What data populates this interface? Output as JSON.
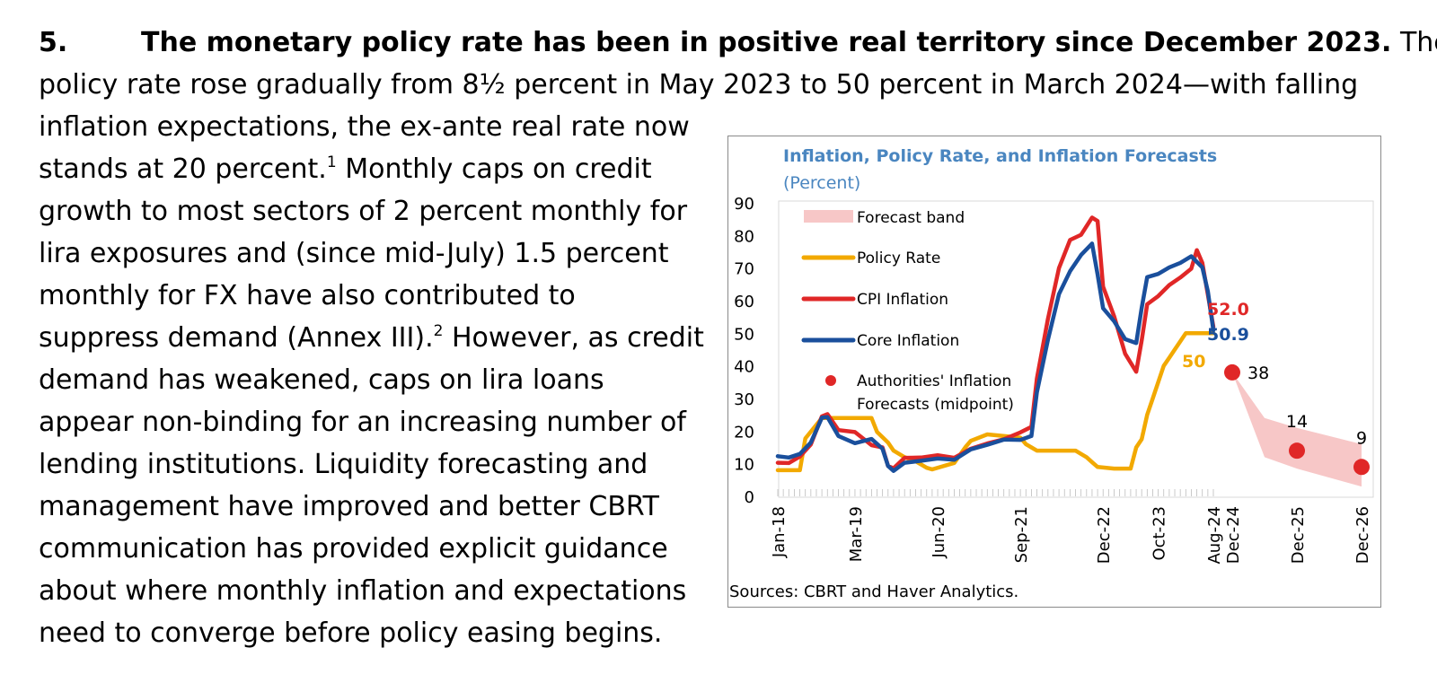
{
  "paragraph": {
    "number": "5.",
    "lead": "The monetary policy rate has been in positive real territory since December 2023.",
    "line1_tail": " The",
    "line2": "policy rate rose gradually from 8½ percent in May 2023 to 50 percent in March 2024—with falling",
    "line3": "inflation expectations, the ex-ante real rate now",
    "line4a": "stands at 20 percent.",
    "fn1": "1",
    "line4b": " Monthly caps on credit",
    "line5": "growth to most sectors of 2 percent monthly for",
    "line6": "lira exposures and (since mid-July) 1.5 percent",
    "line7": "monthly for FX have also contributed to",
    "line8a": "suppress demand (Annex III).",
    "fn2": "2",
    "line8b": " However, as credit",
    "line9": "demand has weakened, caps on lira loans",
    "line10": "appear non-binding for an increasing number of",
    "line11": "lending institutions. Liquidity forecasting and",
    "line12": "management have improved and better CBRT",
    "line13": "communication has provided explicit guidance",
    "line14": "about where monthly inflation and expectations",
    "line15": "need to converge before policy easing begins."
  },
  "chart_data": {
    "type": "line",
    "title": "Inflation, Policy Rate, and Inflation Forecasts",
    "subtitle": "(Percent)",
    "source": "Sources: CBRT and Haver Analytics.",
    "ylim": [
      0,
      90
    ],
    "yticks": [
      "0",
      "10",
      "20",
      "30",
      "40",
      "50",
      "60",
      "70",
      "80",
      "90"
    ],
    "x_tick_labels": [
      "Jan-18",
      "Mar-19",
      "Jun-20",
      "Sep-21",
      "Dec-22",
      "Oct-23",
      "Aug-24",
      "Dec-24",
      "Dec-25",
      "Dec-26"
    ],
    "x_tick_dates": [
      "2018-01",
      "2019-03",
      "2020-06",
      "2021-09",
      "2022-12",
      "2023-10",
      "2024-08",
      "2024-12",
      "2025-12",
      "2026-12"
    ],
    "grid": false,
    "legend_position": "top-left",
    "legend": {
      "band": "Forecast band",
      "policy": "Policy Rate",
      "cpi": "CPI Inflation",
      "core": "Core Inflation",
      "forecast_line1": "Authorities' Inflation",
      "forecast_line2": "Forecasts (midpoint)"
    },
    "colors": {
      "policy": "#f2a900",
      "cpi": "#e02727",
      "core": "#1a4f9c",
      "forecast": "#e02727",
      "band": "#f7c7c7"
    },
    "series": [
      {
        "key": "policy",
        "name": "Policy Rate",
        "points": [
          [
            "2018-01",
            8
          ],
          [
            "2018-05",
            8
          ],
          [
            "2018-06",
            17.75
          ],
          [
            "2018-09",
            24
          ],
          [
            "2019-06",
            24
          ],
          [
            "2019-07",
            19.75
          ],
          [
            "2019-09",
            16.5
          ],
          [
            "2019-10",
            14
          ],
          [
            "2019-12",
            12
          ],
          [
            "2020-02",
            10.75
          ],
          [
            "2020-04",
            8.75
          ],
          [
            "2020-05",
            8.25
          ],
          [
            "2020-09",
            10.25
          ],
          [
            "2020-11",
            15
          ],
          [
            "2020-12",
            17
          ],
          [
            "2021-03",
            19
          ],
          [
            "2021-09",
            18
          ],
          [
            "2021-10",
            16
          ],
          [
            "2021-11",
            15
          ],
          [
            "2021-12",
            14
          ],
          [
            "2022-07",
            14
          ],
          [
            "2022-08",
            13
          ],
          [
            "2022-09",
            12
          ],
          [
            "2022-10",
            10.5
          ],
          [
            "2022-11",
            9
          ],
          [
            "2023-02",
            8.5
          ],
          [
            "2023-05",
            8.5
          ],
          [
            "2023-06",
            15
          ],
          [
            "2023-07",
            17.5
          ],
          [
            "2023-08",
            25
          ],
          [
            "2023-09",
            30
          ],
          [
            "2023-10",
            35
          ],
          [
            "2023-11",
            40
          ],
          [
            "2023-12",
            42.5
          ],
          [
            "2024-01",
            45
          ],
          [
            "2024-03",
            50
          ],
          [
            "2024-08",
            50
          ]
        ]
      },
      {
        "key": "cpi",
        "name": "CPI Inflation",
        "points": [
          [
            "2018-01",
            10.3
          ],
          [
            "2018-03",
            10.2
          ],
          [
            "2018-05",
            12.2
          ],
          [
            "2018-07",
            15.9
          ],
          [
            "2018-09",
            24.5
          ],
          [
            "2018-10",
            25.2
          ],
          [
            "2018-12",
            20.3
          ],
          [
            "2019-03",
            19.7
          ],
          [
            "2019-06",
            15.7
          ],
          [
            "2019-08",
            15
          ],
          [
            "2019-09",
            9.3
          ],
          [
            "2019-10",
            8.6
          ],
          [
            "2019-12",
            11.8
          ],
          [
            "2020-03",
            11.9
          ],
          [
            "2020-06",
            12.6
          ],
          [
            "2020-09",
            11.8
          ],
          [
            "2020-12",
            14.6
          ],
          [
            "2021-03",
            16.2
          ],
          [
            "2021-06",
            17.5
          ],
          [
            "2021-09",
            19.6
          ],
          [
            "2021-11",
            21.3
          ],
          [
            "2021-12",
            36.1
          ],
          [
            "2022-02",
            54.4
          ],
          [
            "2022-04",
            70
          ],
          [
            "2022-06",
            78.6
          ],
          [
            "2022-08",
            80.2
          ],
          [
            "2022-10",
            85.5
          ],
          [
            "2022-11",
            84.4
          ],
          [
            "2022-12",
            64.3
          ],
          [
            "2023-02",
            55.2
          ],
          [
            "2023-04",
            43.7
          ],
          [
            "2023-06",
            38.2
          ],
          [
            "2023-07",
            47.8
          ],
          [
            "2023-08",
            58.9
          ],
          [
            "2023-10",
            61.4
          ],
          [
            "2023-12",
            64.8
          ],
          [
            "2024-02",
            67.1
          ],
          [
            "2024-04",
            69.8
          ],
          [
            "2024-05",
            75.5
          ],
          [
            "2024-06",
            71.6
          ],
          [
            "2024-07",
            61.8
          ],
          [
            "2024-08",
            52
          ]
        ]
      },
      {
        "key": "core",
        "name": "Core Inflation",
        "points": [
          [
            "2018-01",
            12.3
          ],
          [
            "2018-03",
            11.9
          ],
          [
            "2018-05",
            13
          ],
          [
            "2018-07",
            16.5
          ],
          [
            "2018-09",
            24.1
          ],
          [
            "2018-10",
            24.3
          ],
          [
            "2018-12",
            18.5
          ],
          [
            "2019-03",
            16.3
          ],
          [
            "2019-06",
            17.6
          ],
          [
            "2019-08",
            14.6
          ],
          [
            "2019-09",
            9.3
          ],
          [
            "2019-10",
            7.8
          ],
          [
            "2019-12",
            10.3
          ],
          [
            "2020-03",
            10.9
          ],
          [
            "2020-06",
            11.6
          ],
          [
            "2020-09",
            11.2
          ],
          [
            "2020-12",
            14.4
          ],
          [
            "2021-03",
            15.8
          ],
          [
            "2021-06",
            17.4
          ],
          [
            "2021-09",
            17.3
          ],
          [
            "2021-11",
            18.5
          ],
          [
            "2021-12",
            31.9
          ],
          [
            "2022-02",
            48
          ],
          [
            "2022-04",
            62
          ],
          [
            "2022-06",
            69
          ],
          [
            "2022-08",
            74
          ],
          [
            "2022-10",
            77.5
          ],
          [
            "2022-11",
            68
          ],
          [
            "2022-12",
            57.7
          ],
          [
            "2023-02",
            53.7
          ],
          [
            "2023-04",
            48.2
          ],
          [
            "2023-06",
            47
          ],
          [
            "2023-07",
            57.8
          ],
          [
            "2023-08",
            67.2
          ],
          [
            "2023-10",
            68.2
          ],
          [
            "2023-12",
            70.2
          ],
          [
            "2024-02",
            71.6
          ],
          [
            "2024-04",
            73.6
          ],
          [
            "2024-06",
            70.2
          ],
          [
            "2024-07",
            62.8
          ],
          [
            "2024-08",
            50.9
          ]
        ]
      }
    ],
    "forecast_points": [
      {
        "date": "2024-12",
        "value": 38,
        "label": "38"
      },
      {
        "date": "2025-12",
        "value": 14,
        "label": "14"
      },
      {
        "date": "2026-12",
        "value": 9,
        "label": "9"
      }
    ],
    "forecast_band": {
      "upper": [
        [
          "2024-12",
          38
        ],
        [
          "2025-06",
          24
        ],
        [
          "2025-12",
          21
        ],
        [
          "2026-12",
          16
        ]
      ],
      "lower": [
        [
          "2024-12",
          38
        ],
        [
          "2025-06",
          12
        ],
        [
          "2025-12",
          8.5
        ],
        [
          "2026-12",
          3
        ]
      ]
    },
    "end_labels": {
      "cpi": "52.0",
      "core": "50.9",
      "policy": "50"
    }
  }
}
